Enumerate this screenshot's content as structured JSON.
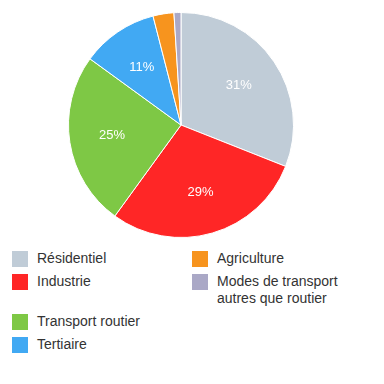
{
  "chart_data": {
    "type": "pie",
    "categories": [
      "Résidentiel",
      "Industrie",
      "Transport routier",
      "Tertiaire",
      "Agriculture",
      "Modes de transport autres que routier"
    ],
    "values": [
      31,
      29,
      25,
      11,
      3,
      1
    ],
    "value_labels": [
      "31%",
      "29%",
      "25%",
      "11%",
      null,
      null
    ],
    "colors": [
      "#c0ccd7",
      "#ff2626",
      "#7ec845",
      "#41a9f3",
      "#f7941e",
      "#aaa8c6"
    ],
    "data_labels": true,
    "legend": "bottom"
  }
}
